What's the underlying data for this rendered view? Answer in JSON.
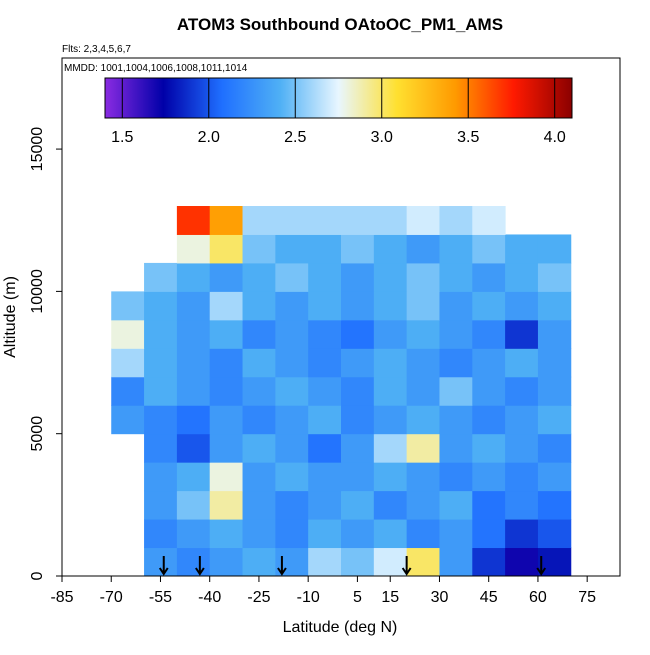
{
  "chart_data": {
    "type": "heatmap",
    "title": "ATOM3 Southbound OAtoOC_PM1_AMS",
    "annotations": [
      "Flts: 2,3,4,5,6,7",
      "MMDD: 1001,1004,1006,1008,1011,1014"
    ],
    "x_label": "Latitude (deg N)",
    "y_label": "Altitude (m)",
    "xlim": [
      -85,
      85
    ],
    "xticks": [
      -85,
      -70,
      -55,
      -40,
      -25,
      -10,
      5,
      15,
      30,
      45,
      60,
      75
    ],
    "ylim": [
      0,
      18200
    ],
    "yticks": [
      0,
      5000,
      10000,
      15000
    ],
    "x_bins": [
      -70,
      -60,
      -50,
      -40,
      -30,
      -20,
      -10,
      0,
      10,
      20,
      30,
      40,
      50,
      60,
      70
    ],
    "y_bins": [
      0,
      1000,
      2000,
      3000,
      4000,
      5000,
      6000,
      7000,
      8000,
      9000,
      10000,
      11000,
      12000,
      13000
    ],
    "values": [
      [
        null,
        2.3,
        2.2,
        2.3,
        2.4,
        2.3,
        2.6,
        2.5,
        2.7,
        3.0,
        2.3,
        1.9,
        1.7,
        1.8
      ],
      [
        null,
        2.2,
        2.3,
        2.4,
        2.3,
        2.2,
        2.4,
        2.3,
        2.4,
        2.2,
        2.3,
        2.1,
        1.9,
        2.0
      ],
      [
        null,
        2.3,
        2.5,
        2.9,
        2.3,
        2.2,
        2.3,
        2.4,
        2.2,
        2.3,
        2.4,
        2.1,
        2.2,
        2.1
      ],
      [
        null,
        2.3,
        2.4,
        2.8,
        2.3,
        2.4,
        2.3,
        2.3,
        2.4,
        2.3,
        2.2,
        2.3,
        2.2,
        2.3
      ],
      [
        null,
        2.2,
        2.0,
        2.3,
        2.4,
        2.3,
        2.1,
        2.3,
        2.6,
        2.9,
        2.3,
        2.4,
        2.3,
        2.2
      ],
      [
        2.3,
        2.2,
        2.1,
        2.3,
        2.2,
        2.3,
        2.4,
        2.2,
        2.3,
        2.4,
        2.3,
        2.2,
        2.3,
        2.4
      ],
      [
        2.2,
        2.4,
        2.3,
        2.2,
        2.3,
        2.4,
        2.3,
        2.2,
        2.4,
        2.3,
        2.5,
        2.3,
        2.2,
        2.3
      ],
      [
        2.6,
        2.4,
        2.3,
        2.2,
        2.4,
        2.3,
        2.2,
        2.3,
        2.4,
        2.3,
        2.2,
        2.3,
        2.4,
        2.3
      ],
      [
        2.8,
        2.4,
        2.3,
        2.4,
        2.2,
        2.3,
        2.2,
        2.1,
        2.3,
        2.4,
        2.3,
        2.2,
        1.9,
        2.3
      ],
      [
        2.5,
        2.4,
        2.3,
        2.6,
        2.4,
        2.3,
        2.4,
        2.3,
        2.4,
        2.5,
        2.3,
        2.4,
        2.3,
        2.4
      ],
      [
        null,
        2.5,
        2.4,
        2.3,
        2.4,
        2.5,
        2.4,
        2.3,
        2.4,
        2.5,
        2.4,
        2.3,
        2.4,
        2.5
      ],
      [
        null,
        null,
        2.8,
        3.0,
        2.5,
        2.4,
        2.4,
        2.5,
        2.4,
        2.3,
        2.4,
        2.5,
        2.4,
        2.4
      ],
      [
        null,
        null,
        3.7,
        3.4,
        2.6,
        2.6,
        2.6,
        2.6,
        2.6,
        2.7,
        2.6,
        2.7,
        null,
        null
      ]
    ],
    "colorbar": {
      "lim": [
        1.4,
        4.1
      ],
      "ticks": [
        1.5,
        {
          "value": 2,
          "label": "2.0"
        },
        2.5,
        {
          "value": 3,
          "label": "3.0"
        },
        3.5,
        {
          "value": 4,
          "label": "4.0"
        }
      ],
      "colors": [
        "#8a2be2",
        "#0000a8",
        "#1f6fff",
        "#4fb0f5",
        "#e8f6ff",
        "#ffe030",
        "#ff9a00",
        "#ff1a00",
        "#8b0000"
      ]
    },
    "arrows_x": [
      -54,
      -43,
      -18,
      20,
      61
    ]
  }
}
